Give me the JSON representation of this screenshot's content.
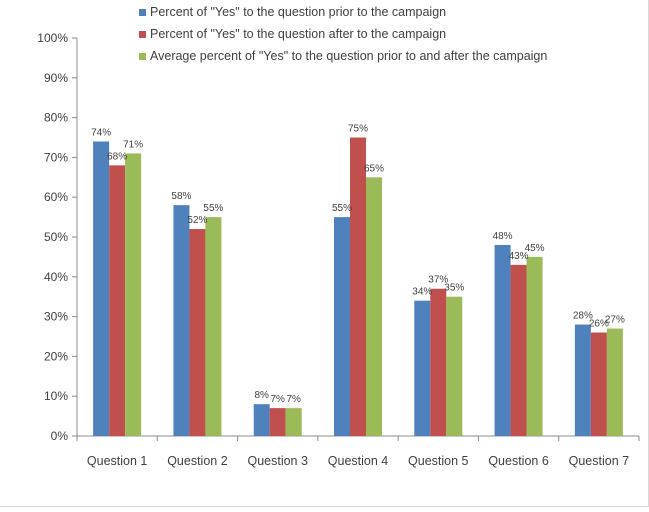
{
  "chart_data": {
    "type": "bar",
    "title": "",
    "xlabel": "",
    "ylabel": "",
    "ylim": [
      0,
      100
    ],
    "y_ticks": [
      "0%",
      "10%",
      "20%",
      "30%",
      "40%",
      "50%",
      "60%",
      "70%",
      "80%",
      "90%",
      "100%"
    ],
    "y_tick_values": [
      0,
      10,
      20,
      30,
      40,
      50,
      60,
      70,
      80,
      90,
      100
    ],
    "grid": false,
    "legend_position": "top",
    "categories": [
      "Question 1",
      "Question 2",
      "Question 3",
      "Question 4",
      "Question 5",
      "Question 6",
      "Question 7"
    ],
    "series": [
      {
        "name": "Percent of \"Yes\" to the question prior to the campaign",
        "color": "#4f81bd",
        "values": [
          74,
          58,
          8,
          55,
          34,
          48,
          28
        ],
        "labels": [
          "74%",
          "58%",
          "8%",
          "55%",
          "34%",
          "48%",
          "28%"
        ]
      },
      {
        "name": "Percent of \"Yes\" to the question after to the campaign",
        "color": "#c0504d",
        "values": [
          68,
          52,
          7,
          75,
          37,
          43,
          26
        ],
        "labels": [
          "68%",
          "52%",
          "7%",
          "75%",
          "37%",
          "43%",
          "26%"
        ]
      },
      {
        "name": "Average percent of \"Yes\" to the question prior to and after the campaign",
        "color": "#9bbb59",
        "values": [
          71,
          55,
          7,
          65,
          35,
          45,
          27
        ],
        "labels": [
          "71%",
          "55%",
          "7%",
          "65%",
          "35%",
          "45%",
          "27%"
        ]
      }
    ]
  }
}
